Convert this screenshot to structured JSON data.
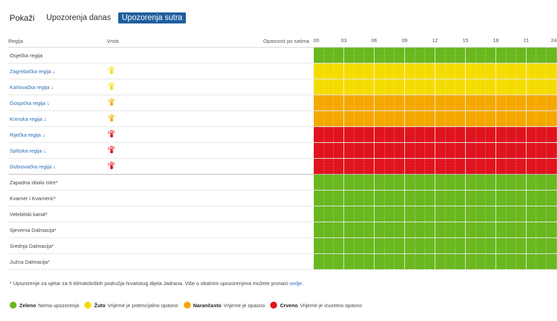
{
  "tabs": {
    "label": "Pokaži",
    "items": [
      {
        "label": "Upozorenja danas",
        "active": false
      },
      {
        "label": "Upozorenja sutra",
        "active": true
      }
    ]
  },
  "table": {
    "headers": {
      "region": "Regija",
      "type": "Vrsta",
      "danger": "Opasnost po satima"
    },
    "hour_labels": [
      "00",
      "03",
      "06",
      "09",
      "12",
      "15",
      "18",
      "21",
      "24"
    ],
    "rows": [
      {
        "region": "Osječka regija",
        "link": false,
        "icon": "",
        "level": "green",
        "group_end": false
      },
      {
        "region": "Zagrebačka regija",
        "link": true,
        "icon": "thermometer-yellow-icon",
        "level": "yellow",
        "group_end": false
      },
      {
        "region": "Karlovačka regija",
        "link": true,
        "icon": "thermometer-yellow-icon",
        "level": "yellow",
        "group_end": false
      },
      {
        "region": "Gospićka regija",
        "link": true,
        "icon": "thermometer-orange-icon",
        "level": "orange",
        "group_end": false
      },
      {
        "region": "Kninska regija",
        "link": true,
        "icon": "thermometer-orange-icon",
        "level": "orange",
        "group_end": false
      },
      {
        "region": "Riječka regija",
        "link": true,
        "icon": "thermometer-red-icon",
        "level": "red",
        "group_end": false
      },
      {
        "region": "Splitska regija",
        "link": true,
        "icon": "thermometer-red-icon",
        "level": "red",
        "group_end": false
      },
      {
        "region": "Dubrovačka regija",
        "link": true,
        "icon": "thermometer-red-icon",
        "level": "red",
        "group_end": true
      },
      {
        "region": "Zapadna obala Istre*",
        "link": false,
        "icon": "",
        "level": "green",
        "group_end": false
      },
      {
        "region": "Kvarner i Kvarneric*",
        "link": false,
        "icon": "",
        "level": "green",
        "group_end": false
      },
      {
        "region": "Velebitski kanal*",
        "link": false,
        "icon": "",
        "level": "green",
        "group_end": false
      },
      {
        "region": "Sjeverna Dalmacija*",
        "link": false,
        "icon": "",
        "level": "green",
        "group_end": false
      },
      {
        "region": "Srednja Dalmacija*",
        "link": false,
        "icon": "",
        "level": "green",
        "group_end": false
      },
      {
        "region": "Južna Dalmacija*",
        "link": false,
        "icon": "",
        "level": "green",
        "group_end": false
      }
    ]
  },
  "footnote": {
    "text": "* Upozorenje za vjetar za 6 klimatoloških područja hrvatskog dijela Jadrana. Više o obalnim upozorenjima možete pronaći ",
    "link": "ovdje",
    "end": "."
  },
  "legend": [
    {
      "name": "Zeleno",
      "desc": "Nema upozorenja",
      "color": "#6ab81f"
    },
    {
      "name": "Žuto",
      "desc": "Vrijeme je potencijalno opasno",
      "color": "#f5dc00"
    },
    {
      "name": "Narančasto",
      "desc": "Vrijeme je opasno",
      "color": "#f5a800"
    },
    {
      "name": "Crveno",
      "desc": "Vrijeme je izuzetno opasno",
      "color": "#e0141e"
    }
  ],
  "colors": {
    "green": "#6ab81f",
    "yellow": "#f5dc00",
    "orange": "#f5a800",
    "red": "#e0141e",
    "accent": "#1f5f9e",
    "link": "#2b6bb4"
  }
}
